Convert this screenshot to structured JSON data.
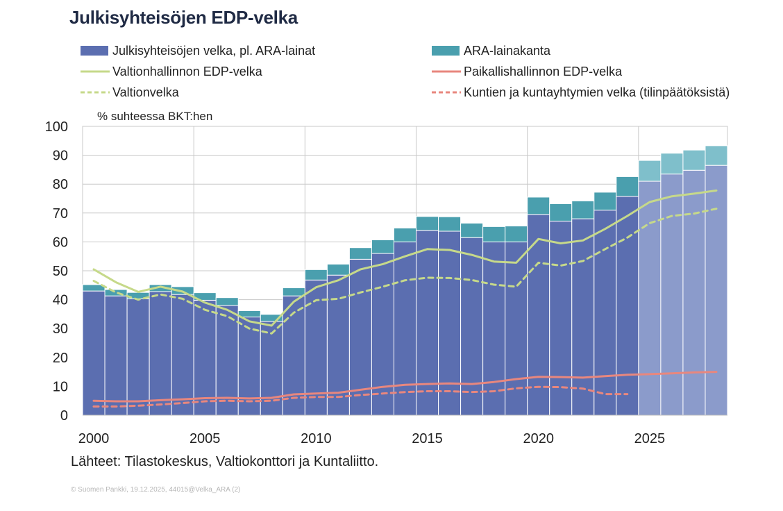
{
  "title": "Julkisyhteisöjen EDP-velka",
  "legend": {
    "public_debt": "Julkisyhteisöjen velka, pl. ARA-lainat",
    "ara": "ARA-lainakanta",
    "central_gov": "Valtionhallinnon EDP-velka",
    "local_gov": "Paikallishallinnon EDP-velka",
    "state_debt": "Valtionvelka",
    "municipal": "Kuntien ja kuntayhtymien velka (tilinpäätöksistä)"
  },
  "y_axis_label": "% suhteessa BKT:hen",
  "source": "Lähteet: Tilastokeskus, Valtiokonttori ja Kuntaliitto.",
  "copyright": "© Suomen Pankki, 19.12.2025, 44015@Velka_ARA (2)",
  "colors": {
    "public_debt": "#5b6eb0",
    "public_debt_forecast": "#8b9bcb",
    "ara": "#4a9fae",
    "ara_forecast": "#7fbfcb",
    "central_gov": "#c6d98a",
    "local_gov": "#e8877e",
    "grid": "#c8c8c8"
  },
  "chart_data": {
    "type": "bar",
    "title": "Julkisyhteisöjen EDP-velka",
    "ylabel": "% suhteessa BKT:hen",
    "ylim": [
      0,
      100
    ],
    "yticks": [
      0,
      10,
      20,
      30,
      40,
      50,
      60,
      70,
      80,
      90,
      100
    ],
    "x_tick_labels": [
      "2000",
      "2005",
      "2010",
      "2015",
      "2020",
      "2025"
    ],
    "categories": [
      2000,
      2001,
      2002,
      2003,
      2004,
      2005,
      2006,
      2007,
      2008,
      2009,
      2010,
      2011,
      2012,
      2013,
      2014,
      2015,
      2016,
      2017,
      2018,
      2019,
      2020,
      2021,
      2022,
      2023,
      2024,
      2025,
      2026,
      2027,
      2028
    ],
    "forecast_from": 2025,
    "series": [
      {
        "name": "Julkisyhteisöjen velka, pl. ARA-lainat",
        "kind": "stacked-bar",
        "values": [
          43.0,
          41.3,
          40.3,
          42.8,
          41.8,
          39.8,
          38.0,
          34.0,
          32.5,
          41.3,
          46.8,
          48.5,
          54.0,
          56.0,
          60.0,
          64.0,
          63.7,
          61.5,
          60.0,
          60.0,
          69.5,
          67.2,
          68.0,
          71.0,
          75.8,
          81.0,
          83.5,
          84.8,
          86.5
        ]
      },
      {
        "name": "ARA-lainakanta",
        "kind": "stacked-bar",
        "values": [
          2.2,
          2.2,
          2.2,
          2.4,
          2.7,
          2.6,
          2.7,
          2.2,
          2.4,
          2.8,
          3.6,
          3.8,
          4.0,
          4.7,
          4.8,
          4.8,
          5.0,
          5.0,
          5.3,
          5.5,
          6.0,
          6.0,
          6.2,
          6.2,
          6.8,
          7.2,
          7.2,
          7.0,
          6.8
        ]
      },
      {
        "name": "Valtionhallinnon EDP-velka",
        "kind": "line",
        "style": "solid",
        "values": [
          50.5,
          46.0,
          42.7,
          44.5,
          42.8,
          39.0,
          36.5,
          32.5,
          31.0,
          39.3,
          44.3,
          46.7,
          50.5,
          52.3,
          55.0,
          57.5,
          57.2,
          55.5,
          53.2,
          52.8,
          61.0,
          59.5,
          60.5,
          64.5,
          69.0,
          73.8,
          75.8,
          76.7,
          77.8
        ]
      },
      {
        "name": "Paikallishallinnon EDP-velka",
        "kind": "line",
        "style": "solid",
        "values": [
          5.0,
          4.8,
          4.8,
          5.2,
          5.5,
          5.9,
          6.0,
          5.8,
          6.0,
          7.2,
          7.5,
          7.8,
          8.8,
          9.8,
          10.5,
          10.8,
          11.0,
          10.8,
          11.5,
          12.5,
          13.3,
          13.2,
          13.0,
          13.5,
          14.0,
          14.2,
          14.5,
          14.8,
          15.0
        ]
      },
      {
        "name": "Valtionvelka",
        "kind": "line",
        "style": "dashed",
        "values": [
          46.5,
          42.5,
          40.0,
          41.8,
          40.3,
          36.5,
          34.3,
          30.0,
          28.3,
          35.5,
          39.8,
          40.3,
          42.5,
          44.5,
          46.7,
          47.6,
          47.5,
          46.8,
          45.2,
          44.5,
          52.8,
          51.8,
          53.4,
          57.5,
          61.5,
          66.5,
          69.0,
          69.8,
          71.5
        ]
      },
      {
        "name": "Kuntien ja kuntayhtymien velka (tilinpäätöksistä)",
        "kind": "line",
        "style": "dashed",
        "values": [
          3.0,
          3.0,
          3.3,
          3.7,
          4.2,
          4.8,
          5.0,
          4.8,
          5.0,
          6.0,
          6.3,
          6.3,
          7.0,
          7.5,
          8.0,
          8.3,
          8.3,
          8.0,
          8.3,
          9.3,
          9.8,
          9.7,
          9.2,
          7.3,
          7.3,
          null,
          null,
          null,
          null
        ]
      }
    ]
  }
}
